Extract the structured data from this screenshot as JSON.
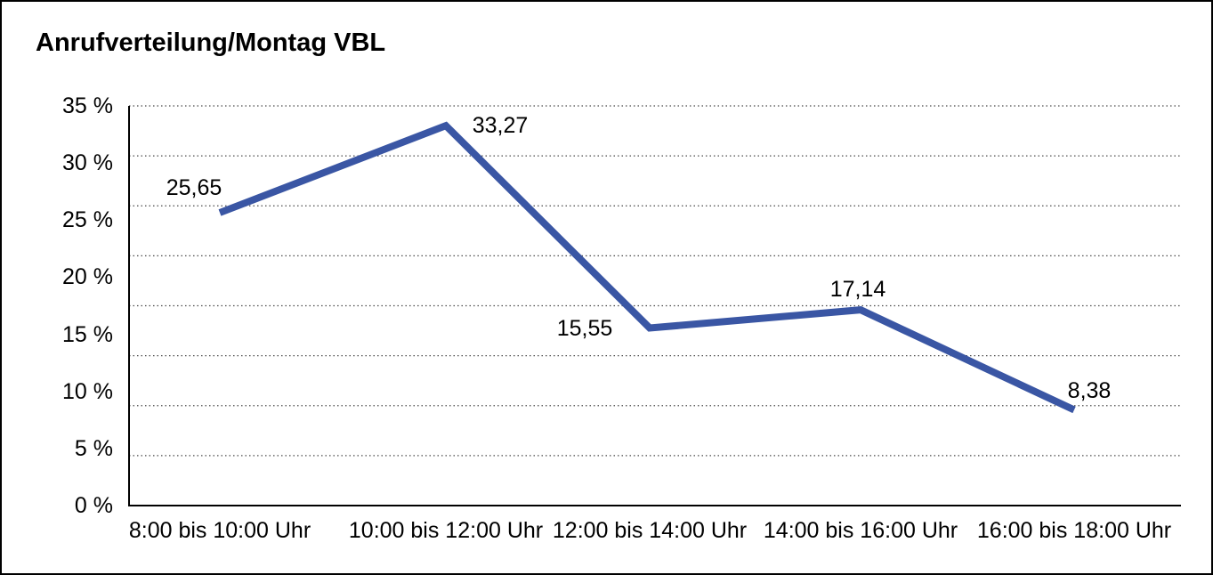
{
  "chart_title": "Anrufverteilung/Montag VBL",
  "chart_data": {
    "type": "line",
    "title": "Anrufverteilung/Montag VBL",
    "categories": [
      "8:00 bis 10:00 Uhr",
      "10:00 bis 12:00 Uhr",
      "12:00 bis 14:00 Uhr",
      "14:00 bis 16:00 Uhr",
      "16:00 bis 18:00 Uhr"
    ],
    "values": [
      25.65,
      33.27,
      15.55,
      17.14,
      8.38
    ],
    "value_labels": [
      "25,65",
      "33,27",
      "15,55",
      "17,14",
      "8,38"
    ],
    "y_tick_labels": [
      "35 %",
      "30 %",
      "25 %",
      "20 %",
      "15 %",
      "10 %",
      "5 %",
      "0 %"
    ],
    "ylim": [
      0,
      35
    ],
    "xlabel": "",
    "ylabel": "",
    "legend_position": "none",
    "grid": "horizontal dotted, 9 evenly spaced lines (labels evenly spread over 8 rows)",
    "line_color": "#3A56A4",
    "axis_color": "#000000",
    "gridline_color": "#4a4a4a"
  }
}
